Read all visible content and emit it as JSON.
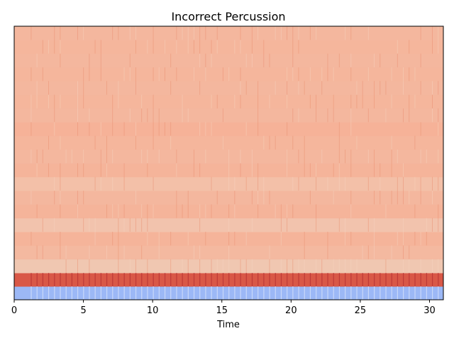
{
  "chart_data": {
    "type": "heatmap",
    "title": "Incorrect Percussion",
    "xlabel": "Time",
    "ylabel": "",
    "xlim": [
      0,
      31
    ],
    "xticks": [
      0,
      5,
      10,
      15,
      20,
      25,
      30
    ],
    "y_axis_ticks": "none",
    "colormap": "coolwarm",
    "rows_bottom_to_top": [
      {
        "band": 1,
        "level": 0.25,
        "color": "#9cb8f6"
      },
      {
        "band": 2,
        "level": 0.92,
        "color": "#d95847"
      },
      {
        "band": 3,
        "level": 0.6,
        "color": "#f0c7b1"
      },
      {
        "band": 4,
        "level": 0.66,
        "color": "#f4b9a0"
      },
      {
        "band": 5,
        "level": 0.69,
        "color": "#f5b49a"
      },
      {
        "band": 6,
        "level": 0.62,
        "color": "#f2c3ad"
      },
      {
        "band": 7,
        "level": 0.69,
        "color": "#f5b49a"
      },
      {
        "band": 8,
        "level": 0.67,
        "color": "#f4b79e"
      },
      {
        "band": 9,
        "level": 0.63,
        "color": "#f3c0a8"
      },
      {
        "band": 10,
        "level": 0.69,
        "color": "#f5b49a"
      },
      {
        "band": 11,
        "level": 0.67,
        "color": "#f4b79e"
      },
      {
        "band": 12,
        "level": 0.68,
        "color": "#f5b69c"
      },
      {
        "band": 13,
        "level": 0.7,
        "color": "#f6b298"
      },
      {
        "band": 14,
        "level": 0.67,
        "color": "#f4b79e"
      },
      {
        "band": 15,
        "level": 0.68,
        "color": "#f5b69c"
      },
      {
        "band": 16,
        "level": 0.67,
        "color": "#f4b79e"
      },
      {
        "band": 17,
        "level": 0.68,
        "color": "#f5b69c"
      },
      {
        "band": 18,
        "level": 0.67,
        "color": "#f4b79e"
      },
      {
        "band": 19,
        "level": 0.68,
        "color": "#f5b69c"
      },
      {
        "band": 20,
        "level": 0.67,
        "color": "#f4b79e"
      }
    ],
    "grid": false,
    "legend": "none"
  }
}
